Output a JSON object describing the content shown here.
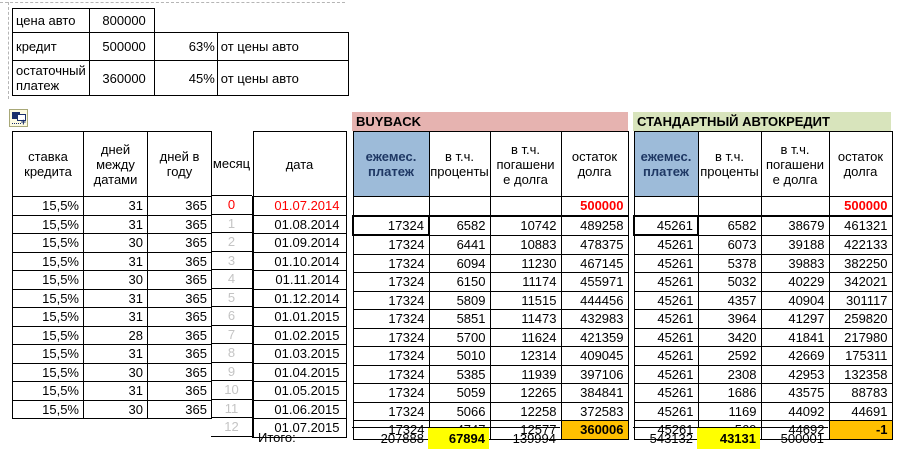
{
  "top_block": {
    "rows": [
      {
        "label": "цена авто",
        "value": "800000",
        "pct": "",
        "note": ""
      },
      {
        "label": "кредит",
        "value": "500000",
        "pct": "63%",
        "note": "от цены авто"
      },
      {
        "label": "остаточный платеж",
        "value": "360000",
        "pct": "45%",
        "note": "от цены авто"
      }
    ]
  },
  "icons": {
    "paste_options": "paste-options-icon",
    "paste_options_plus": "+"
  },
  "colors": {
    "banner_buyback": "#E6B3B0",
    "banner_standard": "#D8E4BC",
    "header_blue": "#9DBBD9",
    "highlight_orange": "#FFC000",
    "highlight_yellow": "#FFFF00",
    "negative_red": "#FF0000",
    "muted_month_gray": "#C4C4C4"
  },
  "main_table": {
    "left_headers": [
      "ставка кредита",
      "дней между датами",
      "дней в году",
      "месяц",
      "дата"
    ],
    "sections": [
      {
        "id": "buyback",
        "title": "BUYBACK",
        "headers": [
          "ежемес. платеж",
          "в т.ч. проценты",
          "в т.ч. погашени\nе долга",
          "остаток долга"
        ],
        "totals": [
          "207888",
          "67894",
          "139994"
        ]
      },
      {
        "id": "standard",
        "title": "СТАНДАРТНЫЙ АВТОКРЕДИТ",
        "headers": [
          "ежемес. платеж",
          "в т.ч. проценты",
          "в т.ч. погашени\nе долга",
          "остаток долга"
        ],
        "totals": [
          "543132",
          "43131",
          "500001"
        ]
      }
    ],
    "totals_label": "Итого:",
    "rows": [
      {
        "month": "0",
        "date": "01.07.2014",
        "rate": "15,5%",
        "days": "31",
        "year": "365",
        "buyback": [
          "",
          "",
          "",
          "500000"
        ],
        "standard": [
          "",
          "",
          "",
          "500000"
        ]
      },
      {
        "month": "1",
        "date": "01.08.2014",
        "rate": "15,5%",
        "days": "31",
        "year": "365",
        "buyback": [
          "17324",
          "6582",
          "10742",
          "489258"
        ],
        "standard": [
          "45261",
          "6582",
          "38679",
          "461321"
        ]
      },
      {
        "month": "2",
        "date": "01.09.2014",
        "rate": "15,5%",
        "days": "30",
        "year": "365",
        "buyback": [
          "17324",
          "6441",
          "10883",
          "478375"
        ],
        "standard": [
          "45261",
          "6073",
          "39188",
          "422133"
        ]
      },
      {
        "month": "3",
        "date": "01.10.2014",
        "rate": "15,5%",
        "days": "31",
        "year": "365",
        "buyback": [
          "17324",
          "6094",
          "11230",
          "467145"
        ],
        "standard": [
          "45261",
          "5378",
          "39883",
          "382250"
        ]
      },
      {
        "month": "4",
        "date": "01.11.2014",
        "rate": "15,5%",
        "days": "30",
        "year": "365",
        "buyback": [
          "17324",
          "6150",
          "11174",
          "455971"
        ],
        "standard": [
          "45261",
          "5032",
          "40229",
          "342021"
        ]
      },
      {
        "month": "5",
        "date": "01.12.2014",
        "rate": "15,5%",
        "days": "31",
        "year": "365",
        "buyback": [
          "17324",
          "5809",
          "11515",
          "444456"
        ],
        "standard": [
          "45261",
          "4357",
          "40904",
          "301117"
        ]
      },
      {
        "month": "6",
        "date": "01.01.2015",
        "rate": "15,5%",
        "days": "31",
        "year": "365",
        "buyback": [
          "17324",
          "5851",
          "11473",
          "432983"
        ],
        "standard": [
          "45261",
          "3964",
          "41297",
          "259820"
        ]
      },
      {
        "month": "7",
        "date": "01.02.2015",
        "rate": "15,5%",
        "days": "28",
        "year": "365",
        "buyback": [
          "17324",
          "5700",
          "11624",
          "421359"
        ],
        "standard": [
          "45261",
          "3420",
          "41841",
          "217980"
        ]
      },
      {
        "month": "8",
        "date": "01.03.2015",
        "rate": "15,5%",
        "days": "31",
        "year": "365",
        "buyback": [
          "17324",
          "5010",
          "12314",
          "409045"
        ],
        "standard": [
          "45261",
          "2592",
          "42669",
          "175311"
        ]
      },
      {
        "month": "9",
        "date": "01.04.2015",
        "rate": "15,5%",
        "days": "30",
        "year": "365",
        "buyback": [
          "17324",
          "5385",
          "11939",
          "397106"
        ],
        "standard": [
          "45261",
          "2308",
          "42953",
          "132358"
        ]
      },
      {
        "month": "10",
        "date": "01.05.2015",
        "rate": "15,5%",
        "days": "31",
        "year": "365",
        "buyback": [
          "17324",
          "5059",
          "12265",
          "384841"
        ],
        "standard": [
          "45261",
          "1686",
          "43575",
          "88783"
        ]
      },
      {
        "month": "11",
        "date": "01.06.2015",
        "rate": "15,5%",
        "days": "30",
        "year": "365",
        "buyback": [
          "17324",
          "5066",
          "12258",
          "372583"
        ],
        "standard": [
          "45261",
          "1169",
          "44092",
          "44691"
        ]
      },
      {
        "month": "12",
        "date": "01.07.2015",
        "rate": "",
        "days": "",
        "year": "",
        "buyback": [
          "17324",
          "4747",
          "12577",
          "360006"
        ],
        "standard": [
          "45261",
          "569",
          "44692",
          "-1"
        ]
      }
    ]
  }
}
